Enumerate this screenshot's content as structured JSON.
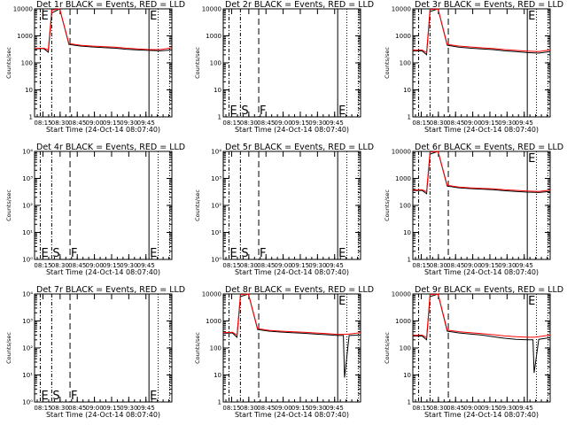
{
  "colors": {
    "events": "#000000",
    "lld": "#ff0000",
    "background": "#ffffff"
  },
  "xtick_labels": [
    "08:15",
    "08:30",
    "08:45",
    "09:00",
    "09:15",
    "09:30",
    "09:45"
  ],
  "xlabel": "Start Time (24-Oct-14 08:07:40)",
  "ylabel": "Counts/sec",
  "ytick_labels_linear": [
    "1",
    "10",
    "100",
    "1000",
    "10000"
  ],
  "ytick_labels_exp": [
    "10⁰",
    "10¹",
    "10²",
    "10³",
    "10⁴"
  ],
  "chart_data": [
    {
      "type": "line",
      "title": "Det 1r BLACK = Events, RED = LLD",
      "ylog": true,
      "ylim": [
        1,
        10000
      ],
      "x_unit": "minutes after 08:07:40",
      "xlim": [
        0,
        120
      ],
      "x": [
        0,
        8,
        12,
        15,
        22,
        30,
        40,
        50,
        60,
        70,
        80,
        90,
        100,
        110,
        120
      ],
      "markers": [
        {
          "x": 5,
          "label": "E"
        },
        {
          "x": 15,
          "label": ""
        },
        {
          "x": 31,
          "label": ""
        },
        {
          "x": 100,
          "label": "E"
        }
      ],
      "series": [
        {
          "name": "Events",
          "color": "#000000",
          "values": [
            330,
            340,
            250,
            7000,
            10000,
            480,
            420,
            390,
            370,
            350,
            320,
            300,
            290,
            280,
            300
          ]
        },
        {
          "name": "LLD",
          "color": "#ff0000",
          "values": [
            340,
            350,
            300,
            9000,
            10000,
            520,
            450,
            420,
            400,
            380,
            350,
            330,
            310,
            310,
            360
          ]
        }
      ]
    },
    {
      "type": "line",
      "title": "Det 2r BLACK = Events, RED = LLD",
      "ylog": true,
      "ylim": [
        1,
        10000
      ],
      "x_unit": "minutes after 08:07:40",
      "xlim": [
        0,
        120
      ],
      "x": [],
      "markers": [
        {
          "x": 5,
          "label": "E"
        },
        {
          "x": 15,
          "label": "S"
        },
        {
          "x": 31,
          "label": "F"
        },
        {
          "x": 100,
          "label": "E"
        }
      ],
      "series": []
    },
    {
      "type": "line",
      "title": "Det 3r BLACK = Events, RED = LLD",
      "ylog": true,
      "ylim": [
        1,
        10000
      ],
      "x_unit": "minutes after 08:07:40",
      "xlim": [
        0,
        120
      ],
      "x": [
        0,
        8,
        12,
        15,
        22,
        30,
        40,
        50,
        60,
        70,
        80,
        90,
        100,
        110,
        120
      ],
      "markers": [
        {
          "x": 5,
          "label": ""
        },
        {
          "x": 15,
          "label": ""
        },
        {
          "x": 31,
          "label": ""
        },
        {
          "x": 100,
          "label": "E"
        }
      ],
      "series": [
        {
          "name": "Events",
          "color": "#000000",
          "values": [
            270,
            280,
            200,
            8000,
            10000,
            450,
            380,
            350,
            330,
            310,
            280,
            260,
            240,
            230,
            260
          ]
        },
        {
          "name": "LLD",
          "color": "#ff0000",
          "values": [
            290,
            300,
            240,
            9500,
            10000,
            480,
            420,
            390,
            360,
            340,
            310,
            290,
            270,
            260,
            300
          ]
        }
      ]
    },
    {
      "type": "line",
      "title": "Det 4r BLACK = Events, RED = LLD",
      "ylog": false,
      "ylim": [
        1,
        10000
      ],
      "x_unit": "minutes after 08:07:40",
      "xlim": [
        0,
        120
      ],
      "x": [],
      "markers": [
        {
          "x": 5,
          "label": "E"
        },
        {
          "x": 15,
          "label": "S"
        },
        {
          "x": 31,
          "label": "F"
        },
        {
          "x": 100,
          "label": "E"
        }
      ],
      "series": []
    },
    {
      "type": "line",
      "title": "Det 5r BLACK = Events, RED = LLD",
      "ylog": false,
      "ylim": [
        1,
        10000
      ],
      "x_unit": "minutes after 08:07:40",
      "xlim": [
        0,
        120
      ],
      "x": [],
      "markers": [
        {
          "x": 5,
          "label": "E"
        },
        {
          "x": 15,
          "label": "S"
        },
        {
          "x": 31,
          "label": "F"
        },
        {
          "x": 100,
          "label": "E"
        }
      ],
      "series": []
    },
    {
      "type": "line",
      "title": "Det 6r BLACK = Events, RED = LLD",
      "ylog": true,
      "ylim": [
        1,
        10000
      ],
      "x_unit": "minutes after 08:07:40",
      "xlim": [
        0,
        120
      ],
      "x": [
        0,
        8,
        12,
        15,
        22,
        30,
        40,
        50,
        60,
        70,
        80,
        90,
        100,
        110,
        120
      ],
      "markers": [
        {
          "x": 5,
          "label": ""
        },
        {
          "x": 15,
          "label": ""
        },
        {
          "x": 31,
          "label": ""
        },
        {
          "x": 100,
          "label": "E"
        }
      ],
      "series": [
        {
          "name": "Events",
          "color": "#000000",
          "values": [
            350,
            360,
            270,
            8000,
            10000,
            520,
            450,
            420,
            400,
            380,
            350,
            330,
            310,
            300,
            330
          ]
        },
        {
          "name": "LLD",
          "color": "#ff0000",
          "values": [
            370,
            380,
            320,
            9500,
            10000,
            560,
            480,
            450,
            430,
            410,
            380,
            360,
            340,
            330,
            370
          ]
        }
      ]
    },
    {
      "type": "line",
      "title": "Det 7r BLACK = Events, RED = LLD",
      "ylog": false,
      "ylim": [
        1,
        10000
      ],
      "x_unit": "minutes after 08:07:40",
      "xlim": [
        0,
        120
      ],
      "x": [],
      "markers": [
        {
          "x": 5,
          "label": "E"
        },
        {
          "x": 15,
          "label": "S"
        },
        {
          "x": 31,
          "label": "F"
        },
        {
          "x": 100,
          "label": "E"
        }
      ],
      "series": []
    },
    {
      "type": "line",
      "title": "Det 8r BLACK = Events, RED = LLD",
      "ylog": true,
      "ylim": [
        1,
        10000
      ],
      "x_unit": "minutes after 08:07:40",
      "xlim": [
        0,
        120
      ],
      "x": [
        0,
        8,
        12,
        15,
        22,
        30,
        40,
        50,
        60,
        70,
        80,
        90,
        100,
        105,
        106,
        110,
        120
      ],
      "markers": [
        {
          "x": 5,
          "label": ""
        },
        {
          "x": 15,
          "label": ""
        },
        {
          "x": 31,
          "label": ""
        },
        {
          "x": 100,
          "label": "E"
        }
      ],
      "series": [
        {
          "name": "Events",
          "color": "#000000",
          "values": [
            350,
            360,
            250,
            8000,
            10000,
            480,
            420,
            390,
            370,
            350,
            330,
            310,
            290,
            290,
            8,
            290,
            300
          ]
        },
        {
          "name": "LLD",
          "color": "#ff0000",
          "values": [
            370,
            380,
            300,
            9500,
            10000,
            520,
            450,
            420,
            400,
            380,
            360,
            340,
            320,
            320,
            320,
            330,
            370
          ]
        }
      ]
    },
    {
      "type": "line",
      "title": "Det 9r BLACK = Events, RED = LLD",
      "ylog": true,
      "ylim": [
        1,
        10000
      ],
      "x_unit": "minutes after 08:07:40",
      "xlim": [
        0,
        120
      ],
      "x": [
        0,
        8,
        12,
        15,
        22,
        30,
        40,
        50,
        60,
        70,
        80,
        90,
        100,
        105,
        106,
        110,
        120
      ],
      "markers": [
        {
          "x": 5,
          "label": ""
        },
        {
          "x": 15,
          "label": ""
        },
        {
          "x": 31,
          "label": ""
        },
        {
          "x": 100,
          "label": "E"
        }
      ],
      "series": [
        {
          "name": "Events",
          "color": "#000000",
          "values": [
            270,
            280,
            200,
            8000,
            10000,
            420,
            360,
            330,
            300,
            260,
            230,
            210,
            200,
            200,
            12,
            210,
            240
          ]
        },
        {
          "name": "LLD",
          "color": "#ff0000",
          "values": [
            290,
            300,
            240,
            9500,
            10000,
            460,
            400,
            370,
            340,
            310,
            280,
            260,
            250,
            250,
            250,
            260,
            300
          ]
        }
      ]
    }
  ]
}
